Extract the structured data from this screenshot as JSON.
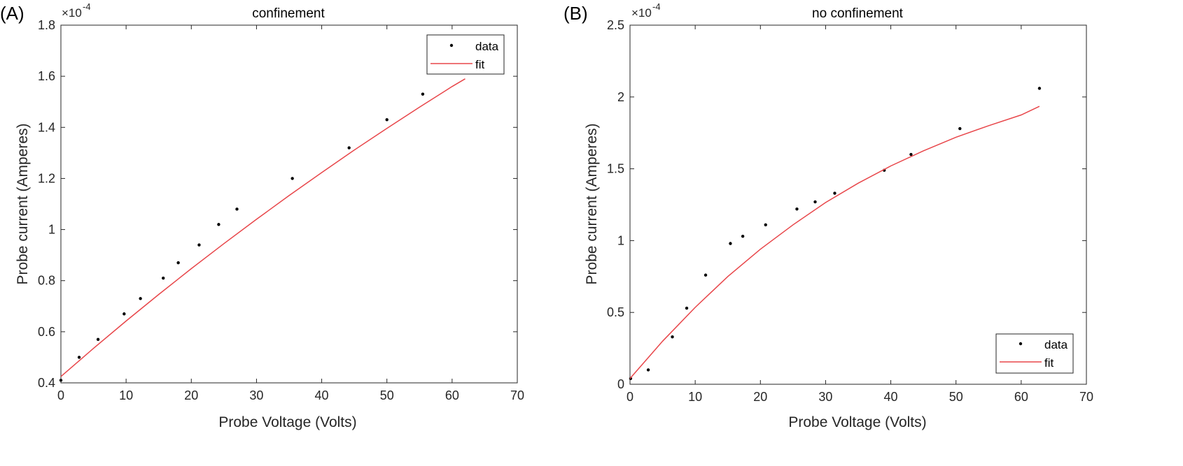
{
  "colors": {
    "fit": "#e8464a",
    "data": "#000000",
    "axis": "#262626"
  },
  "chart_data": [
    {
      "panel_label": "(A)",
      "type": "scatter",
      "title": "confinement",
      "xlabel": "Probe Voltage (Volts)",
      "ylabel": "Probe current (Amperes)",
      "y_multiplier": "×10",
      "y_exponent": "-4",
      "xlim": [
        0,
        70
      ],
      "ylim": [
        0.4,
        1.8
      ],
      "xticks": [
        0,
        10,
        20,
        30,
        40,
        50,
        60,
        70
      ],
      "yticks": [
        0.4,
        0.6,
        0.8,
        1,
        1.2,
        1.4,
        1.6,
        1.8
      ],
      "legend_placement": "top-right",
      "series": [
        {
          "name": "data",
          "kind": "points",
          "x": [
            0,
            2.8,
            5.7,
            9.7,
            12.2,
            15.7,
            18,
            21.2,
            24.2,
            27,
            35.5,
            44.2,
            50,
            55.5
          ],
          "y": [
            0.41,
            0.5,
            0.57,
            0.67,
            0.73,
            0.81,
            0.87,
            0.94,
            1.02,
            1.08,
            1.2,
            1.32,
            1.43,
            1.53
          ]
        },
        {
          "name": "fit",
          "kind": "line",
          "x": [
            0,
            5,
            10,
            15,
            20,
            25,
            30,
            35,
            40,
            45,
            50,
            55,
            60,
            62
          ],
          "y": [
            0.425,
            0.535,
            0.642,
            0.746,
            0.847,
            0.945,
            1.04,
            1.133,
            1.223,
            1.311,
            1.396,
            1.479,
            1.56,
            1.59
          ]
        }
      ]
    },
    {
      "panel_label": "(B)",
      "type": "scatter",
      "title": "no confinement",
      "xlabel": "Probe Voltage (Volts)",
      "ylabel": "Probe current (Amperes)",
      "y_multiplier": "×10",
      "y_exponent": "-4",
      "xlim": [
        0,
        70
      ],
      "ylim": [
        0,
        2.5
      ],
      "xticks": [
        0,
        10,
        20,
        30,
        40,
        50,
        60,
        70
      ],
      "yticks": [
        0,
        0.5,
        1,
        1.5,
        2,
        2.5
      ],
      "legend_placement": "bottom-right",
      "series": [
        {
          "name": "data",
          "kind": "points",
          "x": [
            0.1,
            2.8,
            6.5,
            8.7,
            11.6,
            15.4,
            17.3,
            20.8,
            25.6,
            28.4,
            31.4,
            39,
            43.1,
            50.6,
            62.8
          ],
          "y": [
            0.04,
            0.1,
            0.33,
            0.53,
            0.76,
            0.98,
            1.03,
            1.11,
            1.22,
            1.27,
            1.33,
            1.49,
            1.6,
            1.78,
            2.06
          ]
        },
        {
          "name": "fit",
          "kind": "line",
          "x": [
            0,
            5,
            10,
            15,
            20,
            25,
            30,
            35,
            40,
            45,
            50,
            55,
            60,
            62.8
          ],
          "y": [
            0.04,
            0.3,
            0.535,
            0.75,
            0.94,
            1.11,
            1.265,
            1.4,
            1.52,
            1.625,
            1.72,
            1.8,
            1.875,
            1.935
          ]
        }
      ]
    }
  ]
}
